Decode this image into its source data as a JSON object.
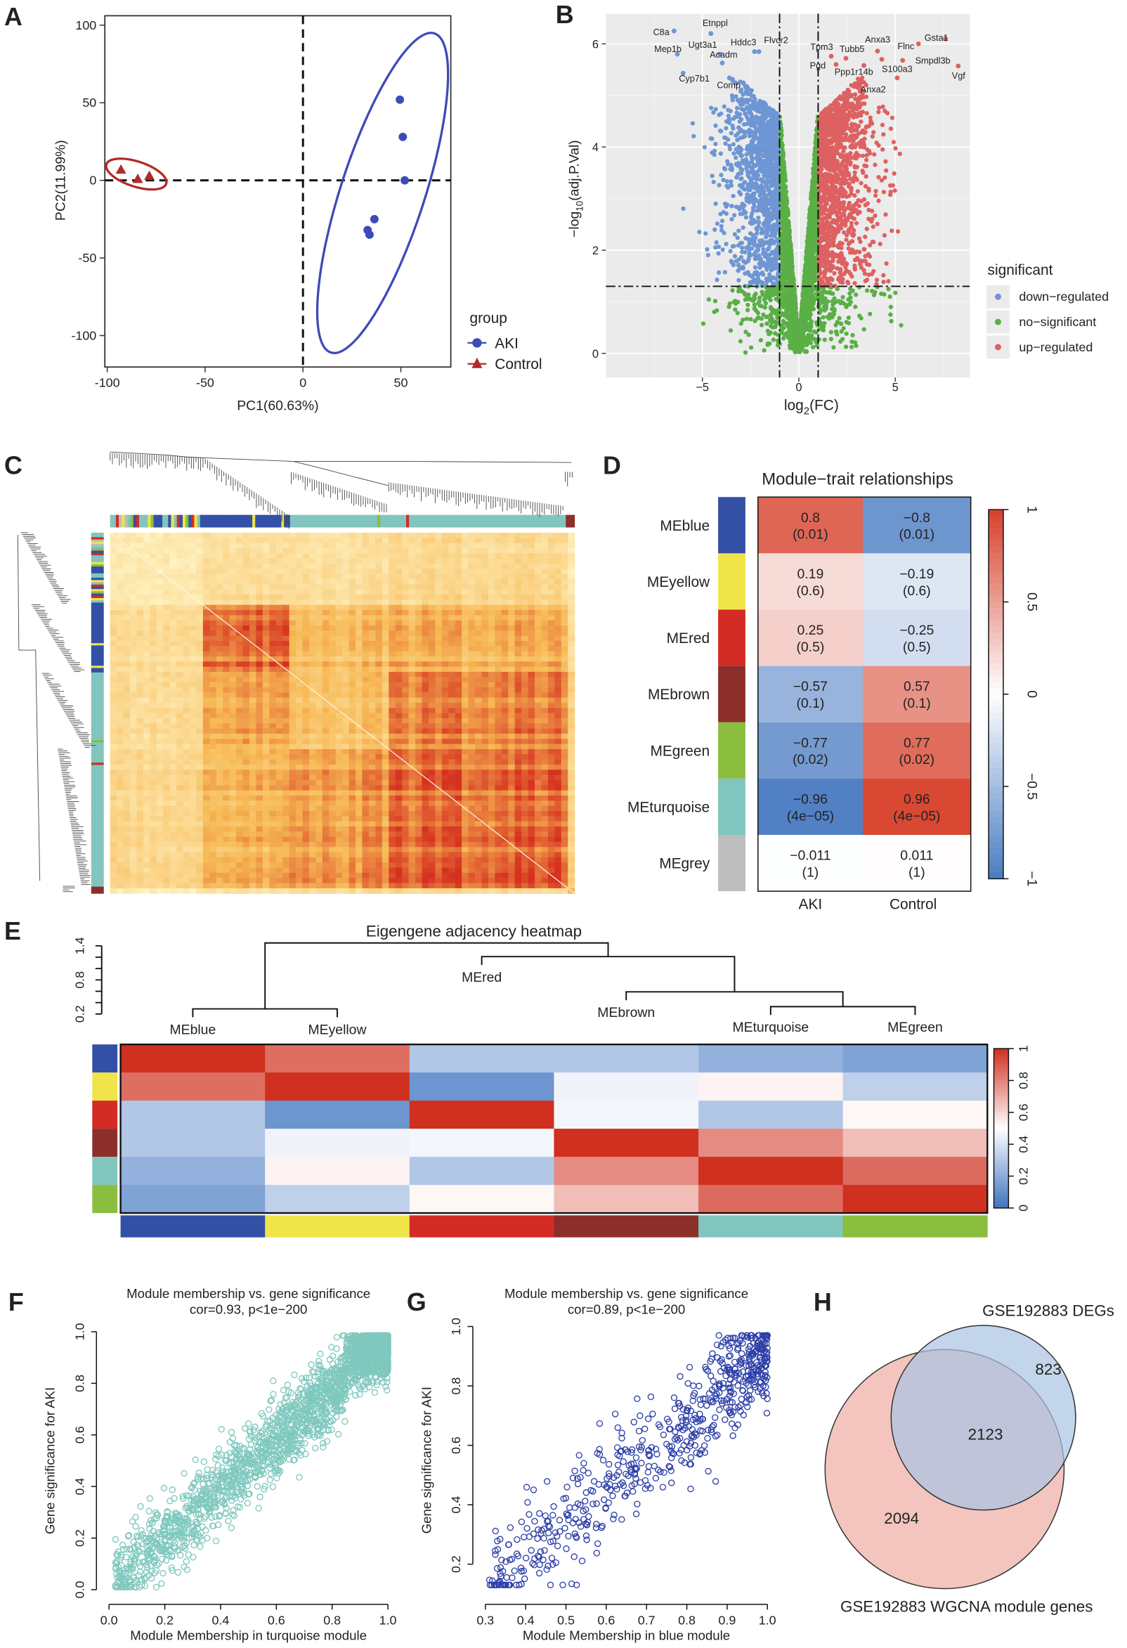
{
  "panel_labels": {
    "A": "A",
    "B": "B",
    "C": "C",
    "D": "D",
    "E": "E",
    "F": "F",
    "G": "G",
    "H": "H"
  },
  "chart_data": [
    {
      "id": "A",
      "type": "scatter",
      "xlabel": "PC1(60.63%)",
      "ylabel": "PC2(11.99%)",
      "xlim": [
        -100,
        70
      ],
      "ylim": [
        -110,
        100
      ],
      "xticks": [
        "-100",
        "-50",
        "0",
        "50"
      ],
      "xtick_values": [
        -100,
        -50,
        0,
        50
      ],
      "yticks": [
        "100",
        "50",
        "0",
        "-50",
        "-100"
      ],
      "ytick_values": [
        100,
        50,
        0,
        -50,
        -100
      ],
      "legend_title": "group",
      "legend_position": "right",
      "series": [
        {
          "name": "AKI",
          "color": "#3d4ab8",
          "marker": "circle",
          "points": [
            [
              49.5,
              52
            ],
            [
              51,
              28
            ],
            [
              52,
              0
            ],
            [
              36.5,
              -25
            ],
            [
              33,
              -32
            ],
            [
              34,
              -35
            ]
          ]
        },
        {
          "name": "Control",
          "color": "#b22a2a",
          "marker": "triangle",
          "points": [
            [
              -93,
              7
            ],
            [
              -84.4,
              1
            ],
            [
              -78.5,
              3
            ]
          ]
        }
      ]
    },
    {
      "id": "B",
      "type": "scatter",
      "xlabel_main": "log",
      "xlabel_sub": "2",
      "xlabel_rest": "(FC)",
      "ylabel_pre": "−log",
      "ylabel_sub": "10",
      "ylabel_rest": "(adj.P.Val)",
      "xlim": [
        -8,
        9
      ],
      "ylim": [
        -0.4,
        6.6
      ],
      "xticks": [
        "−5",
        "0",
        "5"
      ],
      "xtick_values": [
        -5,
        0,
        5
      ],
      "yticks": [
        "0",
        "2",
        "4",
        "6"
      ],
      "ytick_values": [
        0,
        2,
        4,
        6
      ],
      "fc_threshold": 1,
      "p_threshold_log": 1.3,
      "legend_title": "significant",
      "legend_position": "right",
      "categories": [
        {
          "name": "down−regulated",
          "color": "#6f96d4"
        },
        {
          "name": "no−significant",
          "color": "#5aaf46"
        },
        {
          "name": "up−regulated",
          "color": "#de6161"
        }
      ],
      "labeled_genes": [
        {
          "gene": "C8a",
          "x": -6.47,
          "y": 6.25
        },
        {
          "gene": "Etnppl",
          "x": -4.56,
          "y": 6.2
        },
        {
          "gene": "Mep1b",
          "x": -6.3,
          "y": 5.8
        },
        {
          "gene": "Ugt3a1",
          "x": -4.1,
          "y": 5.8
        },
        {
          "gene": "Hddc3",
          "x": -2.07,
          "y": 5.85
        },
        {
          "gene": "Flvcr2",
          "x": -2.3,
          "y": 5.85
        },
        {
          "gene": "Acadm",
          "x": -3.97,
          "y": 5.63
        },
        {
          "gene": "Cyp7b1",
          "x": -6.0,
          "y": 5.43
        },
        {
          "gene": "Comp",
          "x": -3.6,
          "y": 5.34
        },
        {
          "gene": "Tpm3",
          "x": 1.68,
          "y": 5.76
        },
        {
          "gene": "Tubb5",
          "x": 2.44,
          "y": 5.72
        },
        {
          "gene": "Anxa3",
          "x": 4.08,
          "y": 5.86
        },
        {
          "gene": "Flnc",
          "x": 6.2,
          "y": 6.0
        },
        {
          "gene": "Gsta1",
          "x": 7.6,
          "y": 6.1
        },
        {
          "gene": "Smpdl3b",
          "x": 5.38,
          "y": 5.68
        },
        {
          "gene": "Vgf",
          "x": 8.26,
          "y": 5.57
        },
        {
          "gene": "Pgd",
          "x": 1.93,
          "y": 5.6
        },
        {
          "gene": "Ppp1r14b",
          "x": 3.37,
          "y": 5.58
        },
        {
          "gene": "S100a3",
          "x": 4.3,
          "y": 5.7
        },
        {
          "gene": "Anxa2",
          "x": 5.1,
          "y": 5.34
        }
      ]
    },
    {
      "id": "C",
      "type": "heatmap",
      "description_visible": "",
      "modules_in_order": [
        "mixed",
        "blue",
        "turquoise",
        "brown"
      ],
      "color_low": "#fff6c8",
      "color_mid": "#f7b955",
      "color_high": "#d6311f"
    },
    {
      "id": "D",
      "type": "heatmap",
      "title": "Module−trait relationships",
      "columns": [
        "AKI",
        "Control"
      ],
      "rows": [
        {
          "module": "MEblue",
          "color": "#3350a6",
          "values": [
            "0.8",
            "−0.8"
          ],
          "p": [
            "(0.01)",
            "(0.01)"
          ],
          "num": [
            0.8,
            -0.8
          ]
        },
        {
          "module": "MEyellow",
          "color": "#efe44a",
          "values": [
            "0.19",
            "−0.19"
          ],
          "p": [
            "(0.6)",
            "(0.6)"
          ],
          "num": [
            0.19,
            -0.19
          ]
        },
        {
          "module": "MEred",
          "color": "#d32b25",
          "values": [
            "0.25",
            "−0.25"
          ],
          "p": [
            "(0.5)",
            "(0.5)"
          ],
          "num": [
            0.25,
            -0.25
          ]
        },
        {
          "module": "MEbrown",
          "color": "#8c2f2b",
          "values": [
            "−0.57",
            "0.57"
          ],
          "p": [
            "(0.1)",
            "(0.1)"
          ],
          "num": [
            -0.57,
            0.57
          ]
        },
        {
          "module": "MEgreen",
          "color": "#8bbd3e",
          "values": [
            "−0.77",
            "0.77"
          ],
          "p": [
            "(0.02)",
            "(0.02)"
          ],
          "num": [
            -0.77,
            0.77
          ]
        },
        {
          "module": "MEturquoise",
          "color": "#80c6be",
          "values": [
            "−0.96",
            "0.96"
          ],
          "p": [
            "(4e−05)",
            "(4e−05)"
          ],
          "num": [
            -0.96,
            0.96
          ]
        },
        {
          "module": "MEgrey",
          "color": "#bdbdbd",
          "values": [
            "−0.011",
            "0.011"
          ],
          "p": [
            "(1)",
            "(1)"
          ],
          "num": [
            -0.011,
            0.011
          ]
        }
      ],
      "colorbar_ticks": [
        "1",
        "0.5",
        "0",
        "−0.5",
        "−1"
      ],
      "colorbar_values": [
        1,
        0.5,
        0,
        -0.5,
        -1
      ],
      "color_neg": "#4a7cc2",
      "color_zero": "#ffffff",
      "color_pos": "#d7402b"
    },
    {
      "id": "E",
      "type": "heatmap",
      "title": "Eigengene adjacency heatmap",
      "leaves": [
        "MEblue",
        "MEyellow",
        "MEred",
        "MEbrown",
        "MEturquoise",
        "MEgreen"
      ],
      "leaf_colors": [
        "#3350a6",
        "#efe44a",
        "#d32b25",
        "#8c2f2b",
        "#80c6be",
        "#8bbd3e"
      ],
      "dendro_axis_ticks": [
        "1.4",
        "0.8",
        "0.2"
      ],
      "dendro_axis_values": [
        1.4,
        0.8,
        0.2
      ],
      "merges": [
        {
          "a": "MEblue",
          "b": "MEyellow",
          "height": 0.29
        },
        {
          "a": "MEturquoise",
          "b": "MEgreen",
          "height": 0.33
        },
        {
          "a": "MEbrown",
          "b": "(MEturquoise,MEgreen)",
          "height": 0.59
        },
        {
          "a": "MEred",
          "b": "(MEbrown,MEturquoise,MEgreen)",
          "height": 1.21
        },
        {
          "a": "(MEblue,MEyellow)",
          "b": "(MEred,...)",
          "height": 1.45
        }
      ],
      "matrix": [
        [
          1.0,
          0.85,
          0.3,
          0.3,
          0.22,
          0.17
        ],
        [
          0.85,
          1.0,
          0.12,
          0.46,
          0.53,
          0.33
        ],
        [
          0.3,
          0.12,
          1.0,
          0.47,
          0.3,
          0.52
        ],
        [
          0.3,
          0.46,
          0.47,
          1.0,
          0.78,
          0.66
        ],
        [
          0.22,
          0.53,
          0.3,
          0.78,
          1.0,
          0.86
        ],
        [
          0.17,
          0.33,
          0.52,
          0.66,
          0.86,
          1.0
        ]
      ],
      "colorbar_ticks": [
        "1",
        "0.8",
        "0.6",
        "0.4",
        "0.2",
        "0"
      ],
      "colorbar_values": [
        1,
        0.8,
        0.6,
        0.4,
        0.2,
        0
      ]
    },
    {
      "id": "F",
      "type": "scatter",
      "title": "Module membership vs. gene significance",
      "subtitle": "cor=0.93, p<1e−200",
      "xlabel": "Module Membership in turquoise module",
      "ylabel": "Gene significance for AKI",
      "xlim": [
        0,
        1
      ],
      "ylim": [
        0,
        1
      ],
      "xticks": [
        "0.0",
        "0.2",
        "0.4",
        "0.6",
        "0.8",
        "1.0"
      ],
      "xtick_values": [
        0,
        0.2,
        0.4,
        0.6,
        0.8,
        1
      ],
      "yticks": [
        "0.0",
        "0.2",
        "0.4",
        "0.6",
        "0.8",
        "1.0"
      ],
      "ytick_values": [
        0,
        0.2,
        0.4,
        0.6,
        0.8,
        1
      ],
      "color": "#7fc8be",
      "correlation": 0.93,
      "approx_points": 2500
    },
    {
      "id": "G",
      "type": "scatter",
      "title": "Module membership vs. gene significance",
      "subtitle": "cor=0.89, p<1e−200",
      "xlabel": "Module Membership in blue module",
      "ylabel": "Gene significance for AKI",
      "xlim": [
        0.3,
        1
      ],
      "ylim": [
        0.1,
        1
      ],
      "xticks": [
        "0.3",
        "0.4",
        "0.5",
        "0.6",
        "0.7",
        "0.8",
        "0.9",
        "1.0"
      ],
      "xtick_values": [
        0.3,
        0.4,
        0.5,
        0.6,
        0.7,
        0.8,
        0.9,
        1.0
      ],
      "yticks": [
        "0.2",
        "0.4",
        "0.6",
        "0.8",
        "1.0"
      ],
      "ytick_values": [
        0.2,
        0.4,
        0.6,
        0.8,
        1.0
      ],
      "color": "#2c3fa8",
      "correlation": 0.89,
      "approx_points": 600
    },
    {
      "id": "H",
      "type": "venn",
      "sets": [
        {
          "name": "GSE192883 DEGs",
          "only": "823",
          "color": "#a9c3e3"
        },
        {
          "name": "GSE192883 WGCNA module genes",
          "only": "2094",
          "color": "#efb1a8"
        }
      ],
      "intersection": "2123"
    }
  ]
}
